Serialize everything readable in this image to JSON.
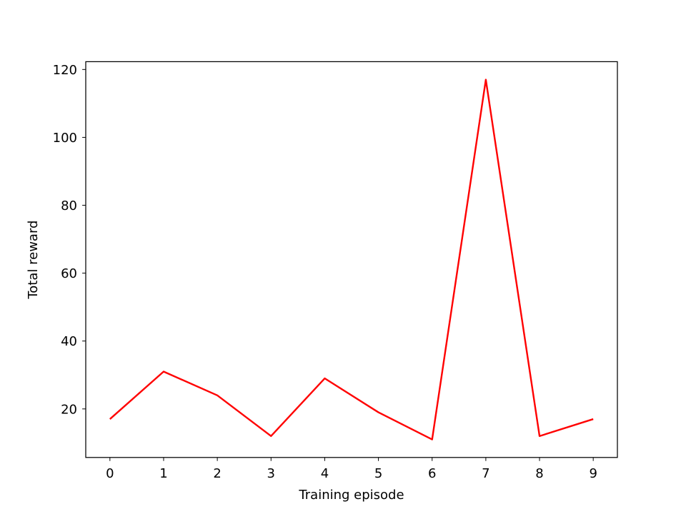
{
  "chart_data": {
    "type": "line",
    "title": "",
    "xlabel": "Training episode",
    "ylabel": "Total reward",
    "x": [
      0,
      1,
      2,
      3,
      4,
      5,
      6,
      7,
      8,
      9
    ],
    "series": [
      {
        "color": "#ff0000",
        "values": [
          17,
          31,
          24,
          12,
          29,
          19,
          11,
          117,
          12,
          17
        ]
      }
    ],
    "xlim": [
      -0.45,
      9.45
    ],
    "ylim": [
      5.7,
      122.3
    ],
    "xticks": [
      0,
      1,
      2,
      3,
      4,
      5,
      6,
      7,
      8,
      9
    ],
    "yticks": [
      20,
      40,
      60,
      80,
      100,
      120
    ],
    "grid": false,
    "legend": "none"
  }
}
